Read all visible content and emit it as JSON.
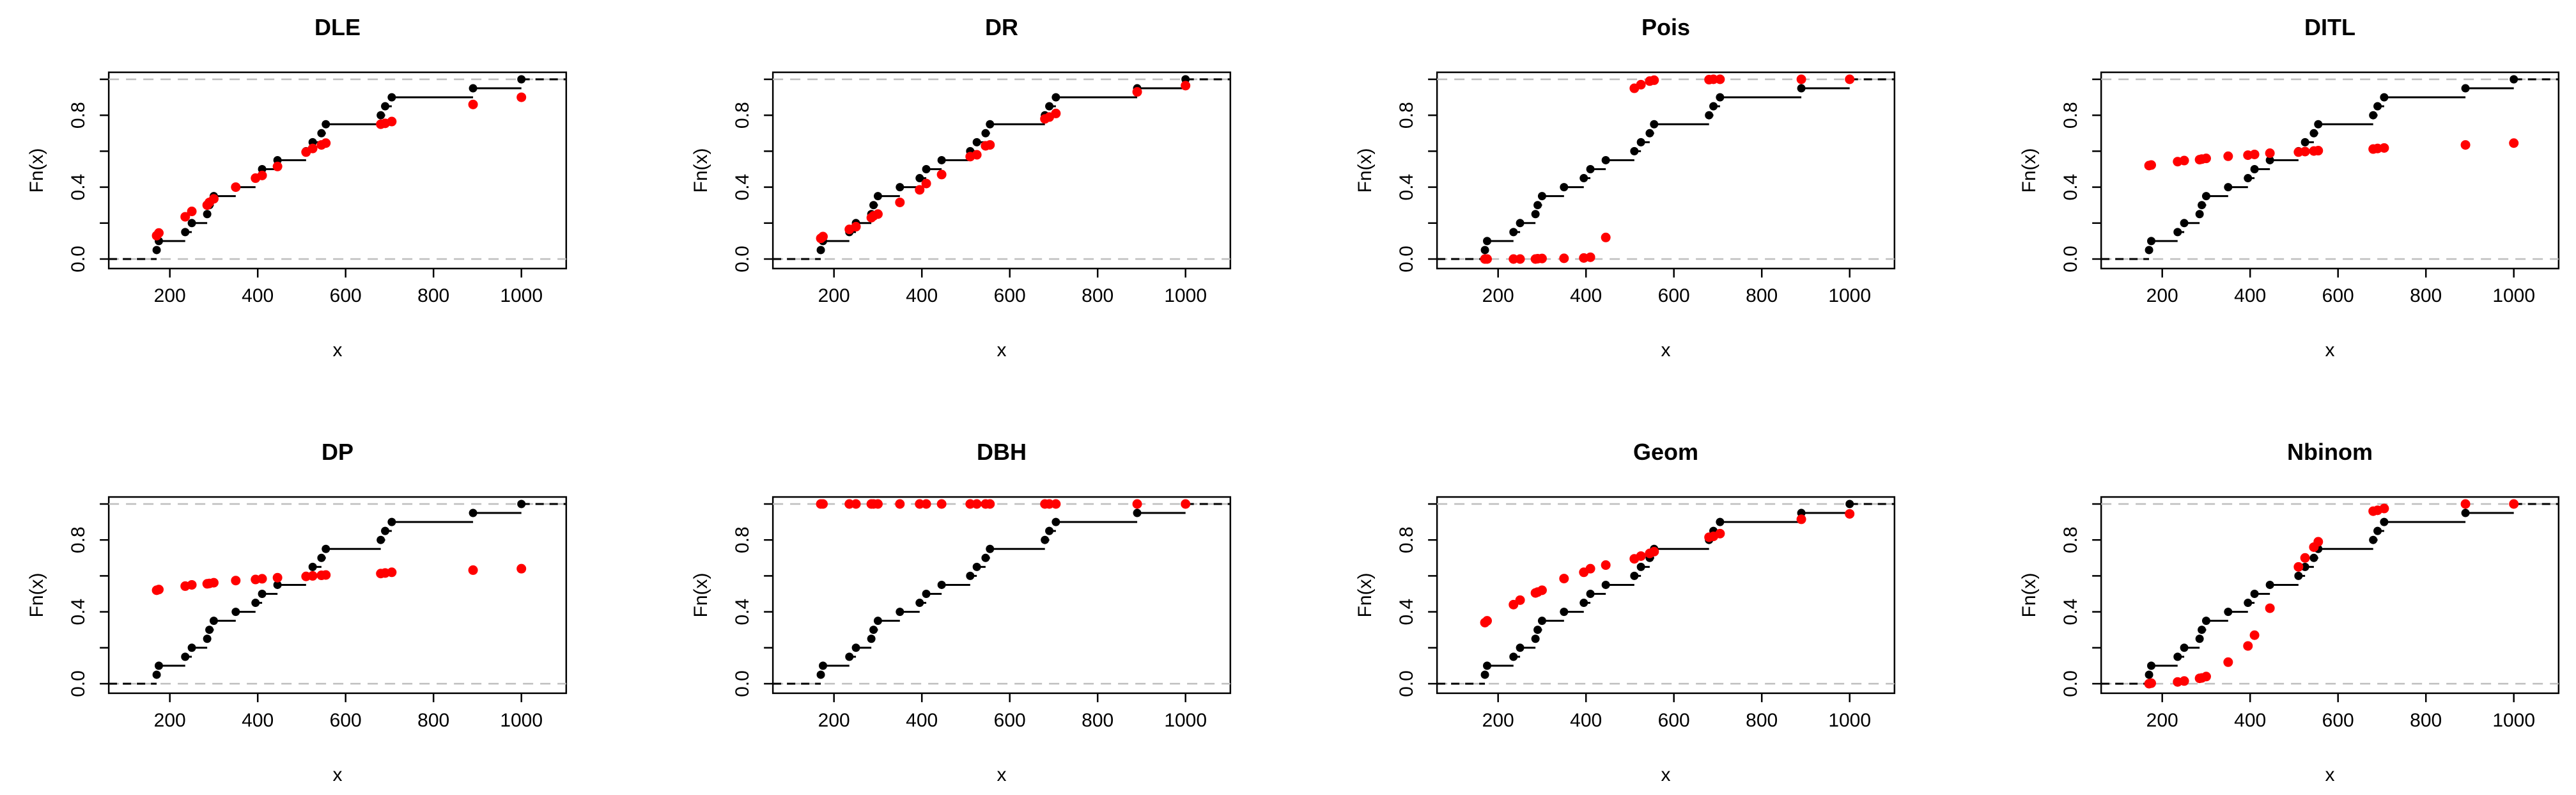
{
  "figure": {
    "description": "Grid of 8 empirical CDF plots comparing fitted discrete distributions",
    "rows": 2,
    "cols": 4
  },
  "colors": {
    "ecdf_points": "#000000",
    "fitted_points": "#FF0000",
    "step_line": "#000000",
    "reference_dashed": "#BEBEBE",
    "box": "#000000",
    "background": "#FFFFFF"
  },
  "chart_data": {
    "type": "ecdf-grid",
    "x_label": "x",
    "y_label": "Fn(x)",
    "x_ticks": [
      200,
      400,
      600,
      800,
      1000
    ],
    "x_tick_labels": [
      "200",
      "400",
      "600",
      "800",
      "1000"
    ],
    "y_ticks": [
      0,
      0.2,
      0.4,
      0.6,
      0.8,
      1.0
    ],
    "y_tick_labels": [
      "0.0",
      "",
      "0.4",
      "",
      "0.8",
      ""
    ],
    "xlim": [
      61,
      1102
    ],
    "ylim": [
      -0.053,
      1.039
    ],
    "reference_lines": [
      0,
      1
    ],
    "grid": false,
    "legend": false,
    "sample_x": [
      170,
      175,
      235,
      250,
      285,
      290,
      300,
      350,
      395,
      410,
      445,
      510,
      525,
      545,
      555,
      680,
      690,
      705,
      890,
      1000
    ],
    "ecdf_levels": [
      0.05,
      0.1,
      0.15,
      0.2,
      0.25,
      0.3,
      0.35,
      0.4,
      0.45,
      0.5,
      0.55,
      0.6,
      0.65,
      0.7,
      0.75,
      0.8,
      0.85,
      0.9,
      0.95,
      1.0
    ],
    "panels": [
      {
        "title": "DLE",
        "fitted": [
          0.13,
          0.145,
          0.235,
          0.265,
          0.3,
          0.315,
          0.335,
          0.4,
          0.45,
          0.465,
          0.515,
          0.595,
          0.615,
          0.635,
          0.645,
          0.75,
          0.755,
          0.765,
          0.86,
          0.9
        ]
      },
      {
        "title": "DR",
        "fitted": [
          0.115,
          0.125,
          0.165,
          0.18,
          0.23,
          0.24,
          0.25,
          0.315,
          0.385,
          0.42,
          0.47,
          0.57,
          0.58,
          0.63,
          0.635,
          0.78,
          0.79,
          0.81,
          0.93,
          0.965
        ]
      },
      {
        "title": "Pois",
        "fitted": [
          0.0,
          0.0,
          0.0,
          0.0,
          0.0,
          0.002,
          0.003,
          0.004,
          0.006,
          0.01,
          0.12,
          0.95,
          0.97,
          0.99,
          0.995,
          0.998,
          1.0,
          1.0,
          1.0,
          1.0
        ]
      },
      {
        "title": "DITL",
        "fitted": [
          0.52,
          0.523,
          0.542,
          0.548,
          0.553,
          0.556,
          0.56,
          0.572,
          0.578,
          0.582,
          0.589,
          0.595,
          0.598,
          0.601,
          0.603,
          0.612,
          0.615,
          0.618,
          0.635,
          0.645
        ]
      },
      {
        "title": "DP",
        "fitted": [
          0.52,
          0.524,
          0.543,
          0.55,
          0.556,
          0.558,
          0.562,
          0.574,
          0.58,
          0.584,
          0.59,
          0.597,
          0.6,
          0.603,
          0.605,
          0.613,
          0.616,
          0.62,
          0.632,
          0.64
        ]
      },
      {
        "title": "DBH",
        "fitted": [
          1.0,
          1.0,
          1.0,
          1.0,
          1.0,
          1.0,
          1.0,
          1.0,
          1.0,
          1.0,
          1.0,
          1.0,
          1.0,
          1.0,
          1.0,
          1.0,
          1.0,
          1.0,
          1.0,
          1.0
        ]
      },
      {
        "title": "Geom",
        "fitted": [
          0.34,
          0.35,
          0.44,
          0.465,
          0.505,
          0.51,
          0.52,
          0.585,
          0.62,
          0.64,
          0.66,
          0.695,
          0.71,
          0.725,
          0.735,
          0.815,
          0.82,
          0.835,
          0.915,
          0.945
        ]
      },
      {
        "title": "Nbinom",
        "fitted": [
          0.0,
          0.003,
          0.01,
          0.015,
          0.03,
          0.032,
          0.04,
          0.12,
          0.21,
          0.27,
          0.42,
          0.65,
          0.7,
          0.76,
          0.79,
          0.96,
          0.965,
          0.975,
          1.0,
          1.0
        ]
      }
    ]
  }
}
